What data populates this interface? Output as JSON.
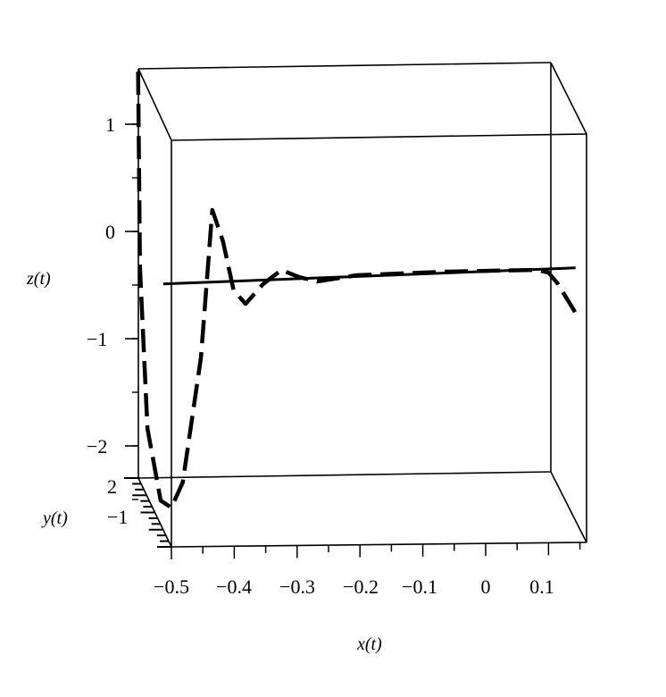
{
  "chart_data": {
    "type": "line",
    "dimensions": "3d",
    "xlabel": "x(t)",
    "ylabel": "y(t)",
    "zlabel": "z(t)",
    "x_ticks": [
      "−0.5",
      "−0.4",
      "−0.3",
      "−0.2",
      "−0.1",
      "0",
      "0.1"
    ],
    "x_tick_values": [
      -0.5,
      -0.4,
      -0.3,
      -0.2,
      -0.1,
      0,
      0.1
    ],
    "y_ticks": [
      "2",
      "−1"
    ],
    "z_ticks": [
      "1",
      "0",
      "−1",
      "−2"
    ],
    "z_tick_values": [
      1,
      0,
      -1,
      -2
    ],
    "xlim": [
      -0.55,
      0.16
    ],
    "zlim": [
      -2.6,
      1.5
    ],
    "grid": false,
    "color": "#000000",
    "series": [
      {
        "style": "dashed",
        "points_xz": [
          [
            -0.553,
            1.49
          ],
          [
            -0.55,
            -0.34
          ],
          [
            -0.538,
            -1.84
          ],
          [
            -0.517,
            -2.51
          ],
          [
            -0.5,
            -2.575
          ],
          [
            -0.482,
            -2.34
          ],
          [
            -0.453,
            -1.175
          ],
          [
            -0.435,
            0.2
          ],
          [
            -0.418,
            -0.09
          ],
          [
            -0.401,
            -0.55
          ],
          [
            -0.382,
            -0.675
          ],
          [
            -0.354,
            -0.49
          ],
          [
            -0.325,
            -0.36
          ],
          [
            -0.297,
            -0.425
          ],
          [
            -0.268,
            -0.467
          ],
          [
            -0.205,
            -0.408
          ],
          [
            -0.0625,
            -0.375
          ],
          [
            0.08,
            -0.358
          ],
          [
            0.1,
            -0.383
          ],
          [
            0.115,
            -0.49
          ],
          [
            0.143,
            -0.76
          ]
        ]
      },
      {
        "style": "solid",
        "points_xz": [
          [
            -0.513,
            -0.49
          ],
          [
            0.143,
            -0.34
          ]
        ]
      }
    ]
  }
}
